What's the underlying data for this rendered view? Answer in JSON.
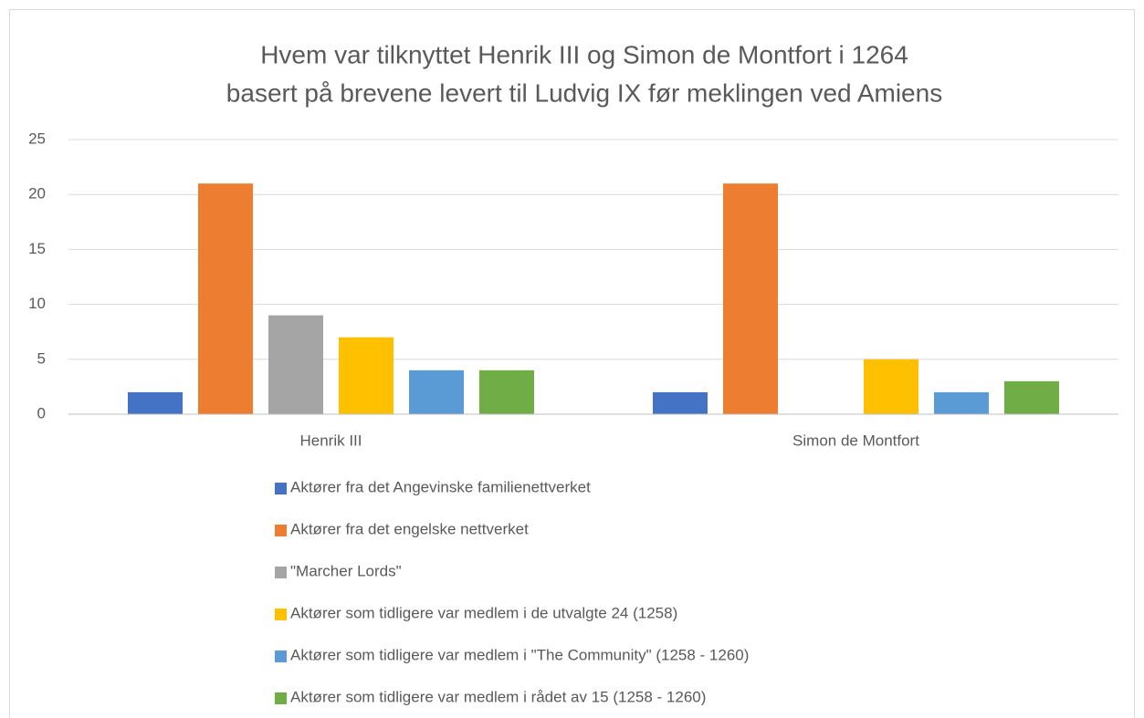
{
  "chart_data": {
    "type": "bar",
    "title": [
      "Hvem var tilknyttet Henrik III og Simon de Montfort i 1264",
      "basert på brevene levert til Ludvig IX før meklingen ved Amiens"
    ],
    "categories": [
      "Henrik III",
      "Simon de Montfort"
    ],
    "series": [
      {
        "name": "Aktører fra det Angevinske familienettverket",
        "color": "#4472c4",
        "values": [
          2,
          2
        ]
      },
      {
        "name": "Aktører fra det engelske nettverket",
        "color": "#ed7d31",
        "values": [
          21,
          21
        ]
      },
      {
        "name": "\"Marcher Lords\"",
        "color": "#a5a5a5",
        "values": [
          9,
          0
        ]
      },
      {
        "name": "Aktører som tidligere var medlem i de utvalgte 24 (1258)",
        "color": "#ffc000",
        "values": [
          7,
          5
        ]
      },
      {
        "name": "Aktører som tidligere var medlem i \"The Community\" (1258 - 1260)",
        "color": "#5b9bd5",
        "values": [
          4,
          2
        ]
      },
      {
        "name": "Aktører som tidligere var medlem i rådet av 15 (1258 - 1260)",
        "color": "#70ad47",
        "values": [
          4,
          3
        ]
      }
    ],
    "ylim": [
      0,
      25
    ],
    "yticks": [
      0,
      5,
      10,
      15,
      20,
      25
    ],
    "grid": true,
    "legend": "bottom"
  }
}
